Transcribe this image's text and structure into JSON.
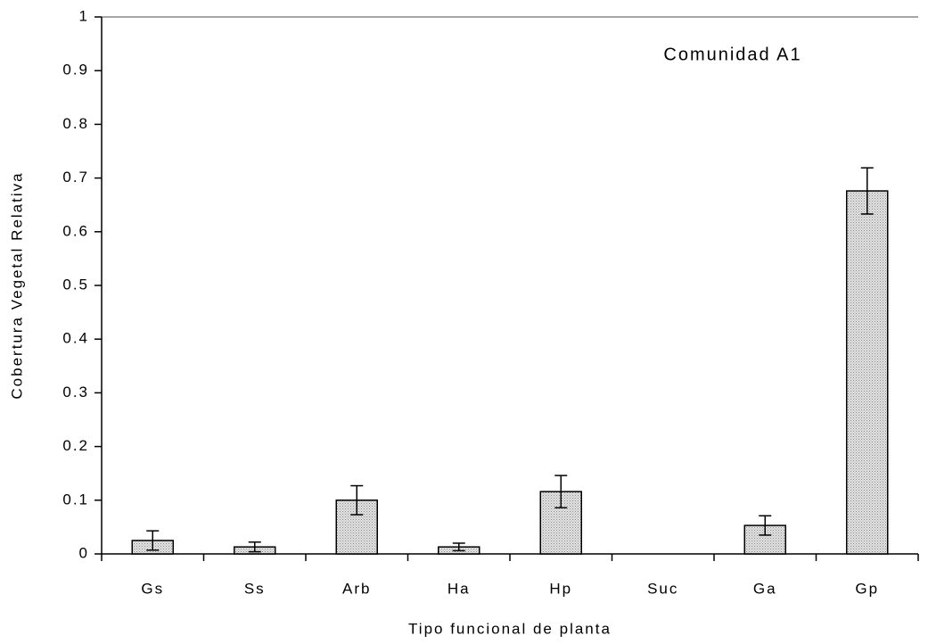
{
  "chart_data": {
    "type": "bar",
    "title": "Comunidad A1",
    "xlabel": "Tipo funcional de planta",
    "ylabel": "Cobertura Vegetal Relativa",
    "categories": [
      "Gs",
      "Ss",
      "Arb",
      "Ha",
      "Hp",
      "Suc",
      "Ga",
      "Gp"
    ],
    "values": [
      0.025,
      0.013,
      0.1,
      0.013,
      0.116,
      0,
      0.053,
      0.676
    ],
    "errors": [
      0.018,
      0.009,
      0.027,
      0.007,
      0.03,
      0,
      0.018,
      0.043
    ],
    "color": "#c8c8c8",
    "ylim": [
      0,
      1
    ],
    "yticks": [
      0,
      0.1,
      0.2,
      0.3,
      0.4,
      0.5,
      0.6,
      0.7,
      0.8,
      0.9,
      1
    ],
    "grid": false
  }
}
